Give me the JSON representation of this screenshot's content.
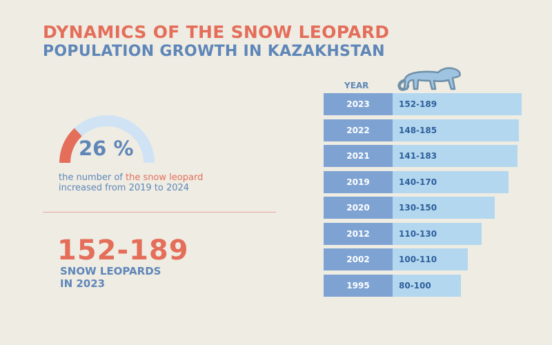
{
  "header": {
    "title_line1": "DYNAMICS OF THE SNOW LEOPARD",
    "title_line2": "POPULATION GROWTH IN KAZAKHSTAN"
  },
  "gauge": {
    "value_text": "26 %",
    "percent": 26,
    "caption_prefix": "the number of ",
    "caption_highlight": "the snow leopard",
    "caption_line2": "increased from 2019 to 2024"
  },
  "highlight": {
    "value": "152-189",
    "caption_line1": "SNOW LEOPARDS",
    "caption_line2": "IN 2023"
  },
  "colors": {
    "accent": "#e46e5a",
    "primary": "#5f86b8",
    "year_cell": "#7ea3d3",
    "value_cell": "#b3d7ef",
    "gauge_track": "#cfe3f5",
    "background": "#eeece3"
  },
  "icon": "snow-leopard-icon",
  "chart_data": {
    "type": "bar",
    "orientation": "horizontal",
    "column_header": "YEAR",
    "categories": [
      "2023",
      "2022",
      "2021",
      "2019",
      "2020",
      "2012",
      "2002",
      "1995"
    ],
    "labels": [
      "152-189",
      "148-185",
      "141-183",
      "140-170",
      "130-150",
      "110-130",
      "100-110",
      "80-100"
    ],
    "ranges": [
      [
        152,
        189
      ],
      [
        148,
        185
      ],
      [
        141,
        183
      ],
      [
        140,
        170
      ],
      [
        130,
        150
      ],
      [
        110,
        130
      ],
      [
        100,
        110
      ],
      [
        80,
        100
      ]
    ]
  }
}
